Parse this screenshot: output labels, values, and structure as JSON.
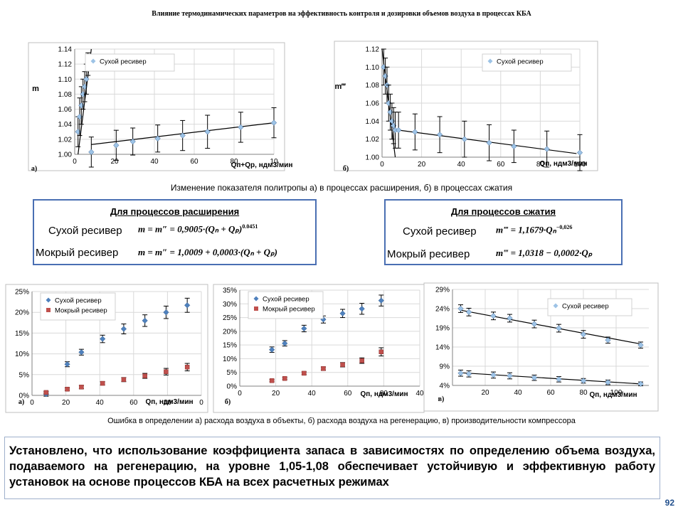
{
  "title": "Влияние термодинамических параметров на эффективность контроля и дозировки объемов воздуха в процессах КБА",
  "caption_top": "Изменение показателя политропы а) в процессах расширения, б) в процессах сжатия",
  "caption_bottom": "Ошибка в определении а) расхода воздуха в объекты, б) расхода воздуха на регенерацию, в) производительности компрессора",
  "formulas": {
    "expansion": {
      "heading": "Для процессов расширения",
      "dry_label": "Сухой ресивер",
      "dry_eq": "m = m″ = 0,9005·(Qₙ + Qₚ)",
      "dry_exp": "0.0451",
      "wet_label": "Мокрый ресивер",
      "wet_eq": "m = m″ = 1,0009 + 0,0003·(Qₙ + Qₚ)"
    },
    "compression": {
      "heading": "Для процессов сжатия",
      "dry_label": "Сухой ресивер",
      "dry_eq": "m‴ = 1,1679·Qₙ",
      "dry_exp": "−0,026",
      "wet_label": "Мокрый ресивер",
      "wet_eq": "m‴ = 1,0318 − 0,0002·Qₚ"
    }
  },
  "conclusion": "Установлено, что использование коэффициента запаса в зависимостях по определению объема воздуха, подаваемого на регенерацию, на уровне 1,05-1,08 обеспечивает устойчивую и эффективную работу установок на основе процессов КБА на всех расчетных режимах",
  "page_number": "92",
  "colors": {
    "dry": "#4f81bd",
    "wet": "#c0504d",
    "dry_light": "#9dc3e6",
    "box_border": "#4a6fb3"
  },
  "chart_data": [
    {
      "id": "a_top",
      "panel_label": "а)",
      "type": "scatter",
      "ylabel": "m",
      "xlabel": "Qп+Qр, ндм3/мин",
      "xlim": [
        0,
        120
      ],
      "ylim": [
        1.0,
        1.14
      ],
      "xticks": [
        "0",
        "20",
        "40",
        "60",
        "80",
        "10"
      ],
      "yticks": [
        "1.00",
        "1.02",
        "1.04",
        "1.06",
        "1.08",
        "1.10",
        "1.12",
        "1.14"
      ],
      "legend": "top-right",
      "series": [
        {
          "name": "Сухой ресивер",
          "x": [
            2,
            3,
            4,
            5,
            6,
            7,
            8,
            10,
            25,
            35,
            50,
            65,
            80,
            100,
            120
          ],
          "y": [
            1.03,
            1.05,
            1.065,
            1.08,
            1.09,
            1.1,
            1.12,
            1.003,
            1.012,
            1.017,
            1.021,
            1.025,
            1.03,
            1.036,
            1.042
          ],
          "err": [
            0.02,
            0.025,
            0.025,
            0.02,
            0.02,
            0.02,
            0.015,
            0.02,
            0.02,
            0.018,
            0.018,
            0.02,
            0.022,
            0.02,
            0.02
          ]
        }
      ],
      "fit_lines": [
        {
          "x": [
            10,
            120
          ],
          "y": [
            1.013,
            1.042
          ]
        },
        {
          "x": [
            2,
            10
          ],
          "y": [
            1.0,
            1.14
          ]
        }
      ]
    },
    {
      "id": "b_top",
      "panel_label": "б)",
      "type": "scatter",
      "ylabel": "m‴",
      "xlabel": "Qп, ндм3/мин",
      "xlim": [
        0,
        120
      ],
      "ylim": [
        1.0,
        1.12
      ],
      "xticks": [
        "0",
        "20",
        "40",
        "60",
        "80",
        "100"
      ],
      "yticks": [
        "1.00",
        "1.02",
        "1.04",
        "1.06",
        "1.08",
        "1.10",
        "1.12"
      ],
      "legend": "top-right",
      "series": [
        {
          "name": "Сухой ресивер",
          "x": [
            1,
            2,
            3,
            4,
            5,
            6,
            7,
            8,
            10,
            20,
            35,
            50,
            65,
            80,
            100,
            120
          ],
          "y": [
            1.1,
            1.09,
            1.08,
            1.06,
            1.05,
            1.04,
            1.035,
            1.03,
            1.03,
            1.028,
            1.025,
            1.02,
            1.016,
            1.012,
            1.009,
            1.005
          ],
          "err": [
            0.02,
            0.02,
            0.02,
            0.02,
            0.02,
            0.02,
            0.02,
            0.02,
            0.02,
            0.02,
            0.02,
            0.02,
            0.02,
            0.018,
            0.02,
            0.02
          ]
        }
      ],
      "fit_lines": [
        {
          "x": [
            10,
            118
          ],
          "y": [
            1.03,
            1.004
          ]
        },
        {
          "x": [
            0,
            8
          ],
          "y": [
            1.12,
            1.0
          ]
        }
      ]
    },
    {
      "id": "a_bottom",
      "panel_label": "а)",
      "type": "scatter",
      "xlabel": "Qп, ндм3/мин",
      "xlim": [
        0,
        120
      ],
      "ylim": [
        0,
        0.25
      ],
      "xticks": [
        "0",
        "20",
        "40",
        "60",
        "80",
        "0"
      ],
      "yticks": [
        "0%",
        "5%",
        "10%",
        "15%",
        "20%",
        "25%"
      ],
      "legend": "top-left",
      "series": [
        {
          "name": "Сухой ресивер",
          "x": [
            10,
            25,
            35,
            50,
            65,
            80,
            95,
            110
          ],
          "y": [
            0.003,
            0.075,
            0.104,
            0.136,
            0.16,
            0.18,
            0.2,
            0.217
          ],
          "err": [
            0.005,
            0.006,
            0.007,
            0.009,
            0.012,
            0.014,
            0.015,
            0.017
          ]
        },
        {
          "name": "Мокрый ресивер",
          "x": [
            10,
            25,
            35,
            50,
            65,
            80,
            95,
            110
          ],
          "y": [
            0.007,
            0.015,
            0.02,
            0.029,
            0.038,
            0.047,
            0.057,
            0.068
          ],
          "err": [
            0.003,
            0.003,
            0.004,
            0.004,
            0.005,
            0.006,
            0.008,
            0.009
          ]
        }
      ]
    },
    {
      "id": "b_bottom",
      "panel_label": "б)",
      "type": "scatter",
      "xlabel": "Qп, ндм3/мин",
      "xlim": [
        0,
        140
      ],
      "ylim": [
        0,
        0.35
      ],
      "xticks": [
        "0",
        "20",
        "40",
        "60",
        "80",
        "40"
      ],
      "yticks": [
        "0%",
        "5%",
        "10%",
        "15%",
        "20%",
        "25%",
        "30%",
        "35%"
      ],
      "legend": "top-left",
      "series": [
        {
          "name": "Сухой ресивер",
          "x": [
            25,
            35,
            50,
            65,
            80,
            95,
            110
          ],
          "y": [
            0.133,
            0.156,
            0.21,
            0.243,
            0.265,
            0.282,
            0.312
          ],
          "err": [
            0.01,
            0.01,
            0.012,
            0.013,
            0.015,
            0.02,
            0.02
          ]
        },
        {
          "name": "Мокрый ресивер",
          "x": [
            25,
            35,
            50,
            65,
            80,
            95,
            110
          ],
          "y": [
            0.02,
            0.028,
            0.047,
            0.064,
            0.078,
            0.093,
            0.125
          ],
          "err": [
            0.004,
            0.004,
            0.005,
            0.006,
            0.008,
            0.01,
            0.015
          ]
        }
      ]
    },
    {
      "id": "c_bottom",
      "panel_label": "в)",
      "type": "scatter",
      "xlabel": "Qп, ндм3/мин",
      "xlim": [
        0,
        120
      ],
      "ylim": [
        0.04,
        0.29
      ],
      "xticks": [
        "20",
        "40",
        "60",
        "80",
        "100"
      ],
      "xtick_values": [
        20,
        40,
        60,
        80,
        100
      ],
      "yticks": [
        "4%",
        "9%",
        "14%",
        "19%",
        "24%",
        "29%"
      ],
      "legend": "top-right",
      "series": [
        {
          "name": "Сухой ресивер",
          "x": [
            5,
            10,
            25,
            35,
            50,
            65,
            80,
            95,
            115
          ],
          "y": [
            0.24,
            0.231,
            0.221,
            0.215,
            0.2,
            0.189,
            0.173,
            0.158,
            0.145
          ],
          "err": [
            0.01,
            0.01,
            0.01,
            0.01,
            0.01,
            0.01,
            0.01,
            0.008,
            0.008
          ]
        },
        {
          "name": "",
          "x": [
            5,
            10,
            25,
            35,
            50,
            65,
            80,
            95,
            115
          ],
          "y": [
            0.072,
            0.07,
            0.067,
            0.065,
            0.06,
            0.056,
            0.052,
            0.048,
            0.044
          ],
          "err": [
            0.008,
            0.008,
            0.008,
            0.008,
            0.007,
            0.007,
            0.006,
            0.006,
            0.005
          ]
        }
      ],
      "fit_lines": [
        {
          "x": [
            5,
            115
          ],
          "y": [
            0.236,
            0.148
          ]
        },
        {
          "x": [
            5,
            115
          ],
          "y": [
            0.073,
            0.044
          ]
        }
      ]
    }
  ]
}
